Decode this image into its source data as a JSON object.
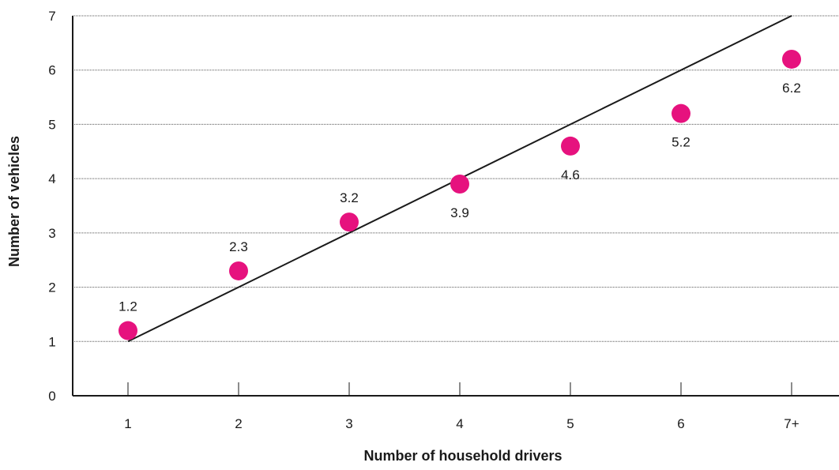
{
  "colors": {
    "point": "#e6127e",
    "line": "#1a1a1a"
  },
  "chart_data": {
    "type": "scatter",
    "xlabel": "Number of household drivers",
    "ylabel": "Number of vehicles",
    "categories": [
      "1",
      "2",
      "3",
      "4",
      "5",
      "6",
      "7+"
    ],
    "y_tick_labels": [
      "0",
      "1",
      "2",
      "3",
      "4",
      "5",
      "6",
      "7"
    ],
    "ylim": [
      0,
      7
    ],
    "grid": true,
    "series": [
      {
        "values": [
          1.2,
          2.3,
          3.2,
          3.9,
          4.6,
          5.2,
          6.2
        ],
        "labels": [
          "1.2",
          "2.3",
          "3.2",
          "3.9",
          "4.6",
          "5.2",
          "6.2"
        ],
        "label_position": [
          "above",
          "above",
          "above",
          "below",
          "below",
          "below",
          "below"
        ]
      }
    ],
    "reference_line": {
      "x": [
        "1",
        "7+"
      ],
      "y": [
        1,
        7
      ]
    }
  }
}
